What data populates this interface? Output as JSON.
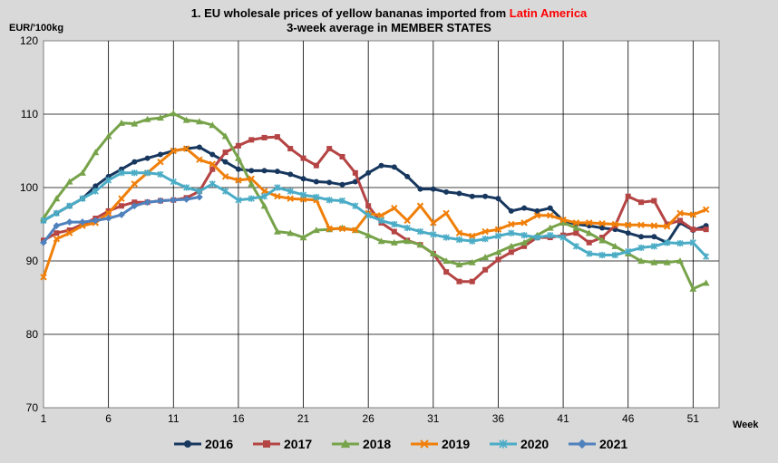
{
  "chart_data": {
    "type": "line",
    "title_prefix": "1. EU wholesale prices of yellow bananas imported from ",
    "title_accent": "Latin America",
    "subtitle": "3-week average in MEMBER STATES",
    "ylabel": "EUR/'100kg",
    "xlabel": "Week",
    "xlim": [
      1,
      53
    ],
    "ylim": [
      70,
      120
    ],
    "x_ticks": [
      1,
      6,
      11,
      16,
      21,
      26,
      31,
      36,
      41,
      46,
      51
    ],
    "y_ticks": [
      70,
      80,
      90,
      100,
      110,
      120
    ],
    "grid": true,
    "legend_position": "bottom",
    "series": [
      {
        "name": "2016",
        "color": "#17375e",
        "marker": "circle",
        "x": [
          1,
          2,
          3,
          4,
          5,
          6,
          7,
          8,
          9,
          10,
          11,
          12,
          13,
          14,
          15,
          16,
          17,
          18,
          19,
          20,
          21,
          22,
          23,
          24,
          25,
          26,
          27,
          28,
          29,
          30,
          31,
          32,
          33,
          34,
          35,
          36,
          37,
          38,
          39,
          40,
          41,
          42,
          43,
          44,
          45,
          46,
          47,
          48,
          49,
          50,
          51,
          52
        ],
        "values": [
          95.5,
          96.5,
          97.5,
          98.5,
          100.2,
          101.5,
          102.5,
          103.5,
          104,
          104.5,
          105,
          105.3,
          105.5,
          104.5,
          103.5,
          102.5,
          102.3,
          102.3,
          102.2,
          101.8,
          101.2,
          100.8,
          100.7,
          100.4,
          100.8,
          102,
          103,
          102.8,
          101.5,
          99.8,
          99.8,
          99.4,
          99.2,
          98.8,
          98.8,
          98.5,
          96.8,
          97.2,
          96.8,
          97.2,
          95.5,
          95,
          94.8,
          94.5,
          94.3,
          93.8,
          93.3,
          93.3,
          92.5,
          95.2,
          94.2,
          94.8
        ]
      },
      {
        "name": "2017",
        "color": "#b54444",
        "marker": "square",
        "x": [
          1,
          2,
          3,
          4,
          5,
          6,
          7,
          8,
          9,
          10,
          11,
          12,
          13,
          14,
          15,
          16,
          17,
          18,
          19,
          20,
          21,
          22,
          23,
          24,
          25,
          26,
          27,
          28,
          29,
          30,
          31,
          32,
          33,
          34,
          35,
          36,
          37,
          38,
          39,
          40,
          41,
          42,
          43,
          44,
          45,
          46,
          47,
          48,
          49,
          50,
          51,
          52
        ],
        "values": [
          92.8,
          93.8,
          94.2,
          95,
          95.8,
          96.8,
          97.5,
          98,
          98,
          98.2,
          98.3,
          98.6,
          99.5,
          102.5,
          104.8,
          105.7,
          106.5,
          106.8,
          106.9,
          105.3,
          104,
          103,
          105.3,
          104.2,
          102,
          97.5,
          95.2,
          94,
          92.8,
          92.2,
          91,
          88.5,
          87.2,
          87.2,
          88.8,
          90.2,
          91.2,
          92,
          93.2,
          93.2,
          93.5,
          93.8,
          92.5,
          93.2,
          94.8,
          98.8,
          98,
          98.2,
          95,
          95.5,
          94.3,
          94.3
        ]
      },
      {
        "name": "2018",
        "color": "#77a34a",
        "marker": "triangle",
        "x": [
          1,
          2,
          3,
          4,
          5,
          6,
          7,
          8,
          9,
          10,
          11,
          12,
          13,
          14,
          15,
          16,
          17,
          18,
          19,
          20,
          21,
          22,
          23,
          24,
          25,
          26,
          27,
          28,
          29,
          30,
          31,
          32,
          33,
          34,
          35,
          36,
          37,
          38,
          39,
          40,
          41,
          42,
          43,
          44,
          45,
          46,
          47,
          48,
          49,
          50,
          51,
          52
        ],
        "values": [
          95.8,
          98.5,
          100.8,
          102,
          104.8,
          107,
          108.8,
          108.7,
          109.3,
          109.5,
          110.1,
          109.2,
          109,
          108.5,
          107,
          104,
          100.5,
          97.5,
          94,
          93.8,
          93.2,
          94.2,
          94.3,
          94.5,
          94.2,
          93.5,
          92.7,
          92.5,
          92.7,
          92.2,
          91,
          90,
          89.5,
          89.8,
          90.5,
          91.2,
          92,
          92.5,
          93.5,
          94.5,
          95.2,
          94.5,
          93.8,
          92.8,
          92,
          91,
          90,
          89.8,
          89.8,
          90,
          86.2,
          87
        ]
      },
      {
        "name": "2019",
        "color": "#f07f09",
        "marker": "x",
        "x": [
          1,
          2,
          3,
          4,
          5,
          6,
          7,
          8,
          9,
          10,
          11,
          12,
          13,
          14,
          15,
          16,
          17,
          18,
          19,
          20,
          21,
          22,
          23,
          24,
          25,
          26,
          27,
          28,
          29,
          30,
          31,
          32,
          33,
          34,
          35,
          36,
          37,
          38,
          39,
          40,
          41,
          42,
          43,
          44,
          45,
          46,
          47,
          48,
          49,
          50,
          51,
          52
        ],
        "values": [
          87.8,
          93,
          93.8,
          94.8,
          95.2,
          96.5,
          98.5,
          100.5,
          102,
          103.5,
          105,
          105.3,
          103.8,
          103.2,
          101.5,
          101,
          101.2,
          99.5,
          98.8,
          98.5,
          98.4,
          98.3,
          94.4,
          94.4,
          94.2,
          96.5,
          96.2,
          97.2,
          95.5,
          97.5,
          95.2,
          96.5,
          93.8,
          93.4,
          94,
          94.3,
          95,
          95.2,
          96.2,
          96.2,
          95.6,
          95.2,
          95.2,
          95.1,
          95,
          94.9,
          94.9,
          94.8,
          94.7,
          96.5,
          96.3,
          97
        ]
      },
      {
        "name": "2020",
        "color": "#4bacc6",
        "marker": "asterisk",
        "x": [
          1,
          2,
          3,
          4,
          5,
          6,
          7,
          8,
          9,
          10,
          11,
          12,
          13,
          14,
          15,
          16,
          17,
          18,
          19,
          20,
          21,
          22,
          23,
          24,
          25,
          26,
          27,
          28,
          29,
          30,
          31,
          32,
          33,
          34,
          35,
          36,
          37,
          38,
          39,
          40,
          41,
          42,
          43,
          44,
          45,
          46,
          47,
          48,
          49,
          50,
          51,
          52
        ],
        "values": [
          95.5,
          96.5,
          97.5,
          98.5,
          99.5,
          101,
          102,
          102,
          102,
          101.8,
          100.8,
          100,
          99.5,
          100.5,
          99.5,
          98.3,
          98.5,
          98.8,
          100,
          99.5,
          99,
          98.7,
          98.3,
          98.2,
          97.5,
          96.2,
          95.5,
          95,
          94.5,
          94,
          93.6,
          93.2,
          92.9,
          92.7,
          93,
          93.4,
          93.8,
          93.5,
          93.2,
          93.5,
          93.2,
          92,
          91,
          90.8,
          90.8,
          91.3,
          91.8,
          92,
          92.5,
          92.4,
          92.5,
          90.6
        ]
      },
      {
        "name": "2021",
        "color": "#4f81bd",
        "marker": "diamond",
        "x": [
          1,
          2,
          3,
          4,
          5,
          6,
          7,
          8,
          9,
          10,
          11,
          12,
          13
        ],
        "values": [
          92.5,
          94.8,
          95.3,
          95.3,
          95.5,
          95.8,
          96.3,
          97.5,
          98,
          98.2,
          98.3,
          98.4,
          98.7
        ]
      }
    ]
  }
}
